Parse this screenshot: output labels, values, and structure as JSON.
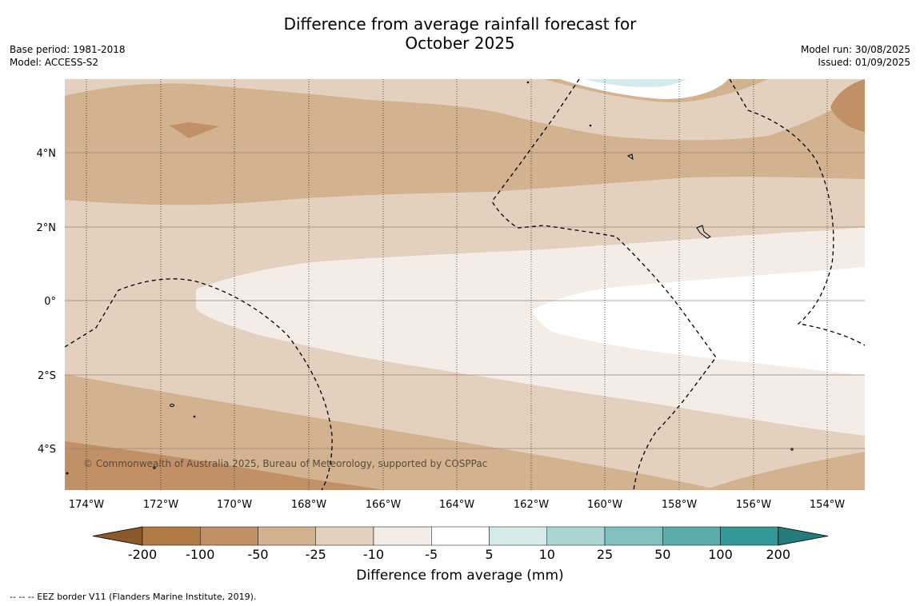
{
  "title_line1": "Difference from average rainfall forecast for",
  "title_line2": "October 2025",
  "meta_left": [
    "Base period: 1981-2018",
    "Model: ACCESS-S2"
  ],
  "meta_right": [
    "Model run: 30/08/2025",
    "Issued: 01/09/2025"
  ],
  "copyright": "© Commonwealth of Australia 2025, Bureau of Meteorology, supported by COSPPac",
  "lat_ticks": [
    "4°N",
    "2°N",
    "0°",
    "2°S",
    "4°S"
  ],
  "lon_ticks": [
    "174°W",
    "172°W",
    "170°W",
    "168°W",
    "166°W",
    "164°W",
    "162°W",
    "160°W",
    "158°W",
    "156°W",
    "154°W"
  ],
  "colorbar": {
    "title": "Difference from average (mm)",
    "labels": [
      "-200",
      "-100",
      "-50",
      "-25",
      "-10",
      "-5",
      "5",
      "10",
      "25",
      "50",
      "100",
      "200"
    ],
    "colors": [
      "#8b5a2b",
      "#b07a45",
      "#c09066",
      "#d2b28f",
      "#e3d0bf",
      "#f4ece6",
      "#ffffff",
      "#d4ebe9",
      "#a9d6d4",
      "#80c1be",
      "#5aacab",
      "#349896",
      "#237c7a"
    ]
  },
  "footer": "--  --  -- EEZ border V11 (Flanders Marine Institute, 2019)."
}
